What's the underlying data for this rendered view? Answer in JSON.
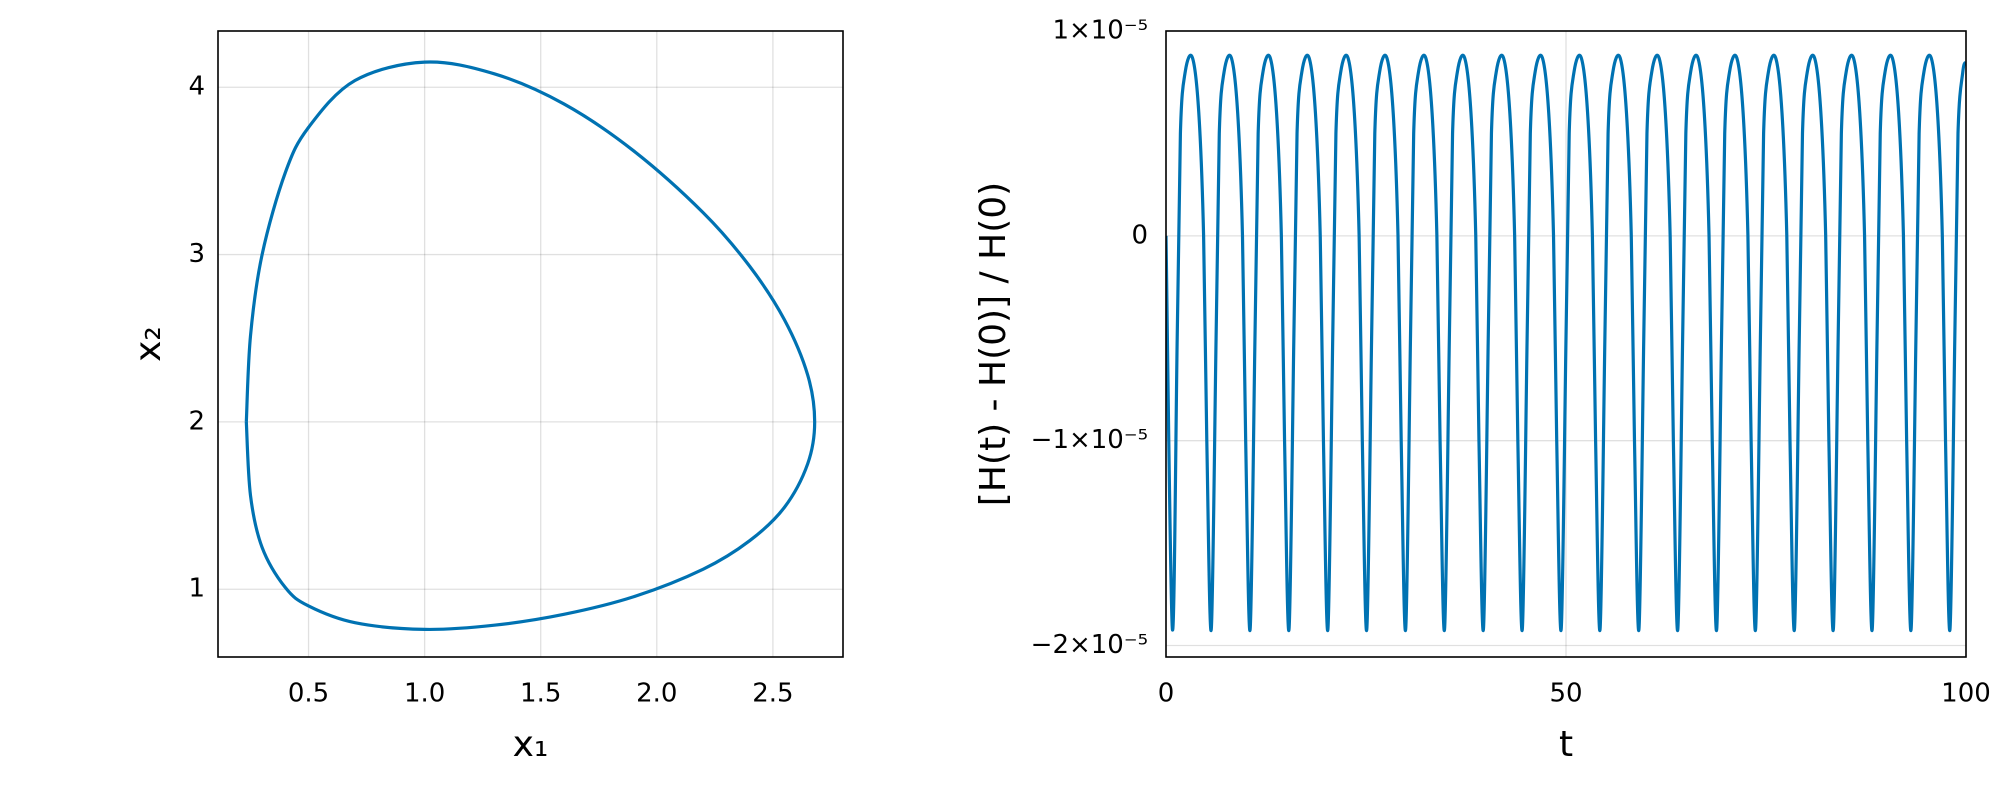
{
  "chart_data": [
    {
      "type": "line",
      "xlabel": "x₁",
      "ylabel": "x₂",
      "x": [
        0.232,
        0.25,
        0.3,
        0.4,
        0.5,
        0.7,
        1.0,
        1.3,
        1.6,
        1.9,
        2.2,
        2.4,
        2.55,
        2.65,
        2.68,
        2.65,
        2.55,
        2.4,
        2.2,
        1.9,
        1.6,
        1.3,
        1.0,
        0.7,
        0.5,
        0.4,
        0.3,
        0.25,
        0.232
      ],
      "series": [
        {
          "color": "#0072b2",
          "values": [
            2,
            2.515,
            3.0,
            3.49,
            3.76,
            4.04,
            4.15,
            4.08,
            3.9,
            3.62,
            3.25,
            2.93,
            2.61,
            2.28,
            2,
            1.75,
            1.49,
            1.29,
            1.12,
            0.955,
            0.85,
            0.785,
            0.76,
            0.8,
            0.9,
            1.01,
            1.25,
            1.56,
            2
          ]
        }
      ],
      "xlim": [
        0.11,
        2.802
      ],
      "ylim": [
        0.595,
        4.336
      ],
      "xticks": [
        0.5,
        {
          "value": 1,
          "label": "1.0"
        },
        1.5,
        {
          "value": 2,
          "label": "2.0"
        },
        2.5
      ],
      "yticks": [
        1,
        2,
        3,
        4
      ],
      "grid": true
    },
    {
      "type": "line",
      "xlabel": "t",
      "ylabel": "[H(t) - H(0)] / H(0)",
      "x": [
        0,
        0.8,
        1.4,
        1.8,
        2.4,
        3.3,
        4.1,
        4.7,
        5.1,
        5.66,
        6.26,
        6.66,
        7.26,
        8.16,
        8.96,
        9.56,
        9.96,
        10.52,
        11.12,
        11.52,
        12.12,
        13.02,
        13.82,
        14.42,
        14.82,
        15.38,
        15.98,
        16.38,
        16.98,
        17.88,
        18.68,
        19.28,
        19.68,
        20.24,
        20.84,
        21.24,
        21.84,
        22.74,
        23.54,
        24.14,
        24.54,
        25.1,
        25.7,
        26.1,
        26.7,
        27.6,
        28.4,
        29.0,
        29.4,
        29.96,
        30.56,
        30.96,
        31.56,
        32.46,
        33.26,
        33.86,
        34.26,
        34.82,
        35.42,
        35.82,
        36.42,
        37.32,
        38.12,
        38.72,
        39.12,
        39.68,
        40.28,
        40.68,
        41.28,
        42.18,
        42.98,
        43.58,
        43.98,
        44.54,
        45.14,
        45.54,
        46.14,
        47.04,
        47.84,
        48.44,
        48.84,
        49.4,
        50.0,
        50.4,
        51.0,
        51.9,
        52.7,
        53.3,
        53.7,
        54.26,
        54.86,
        55.26,
        55.86,
        56.76,
        57.56,
        58.16,
        58.56,
        59.12,
        59.72,
        60.12,
        60.72,
        61.62,
        62.42,
        63.02,
        63.42,
        63.98,
        64.58,
        64.98,
        65.58,
        66.48,
        67.28,
        67.88,
        68.28,
        68.84,
        69.44,
        69.84,
        70.44,
        71.34,
        72.14,
        72.74,
        73.14,
        73.7,
        74.3,
        74.7,
        75.3,
        76.2,
        77.0,
        77.6,
        78.0,
        78.56,
        79.16,
        79.56,
        80.16,
        81.06,
        81.86,
        82.46,
        82.86,
        83.42,
        84.02,
        84.42,
        85.02,
        85.92,
        86.72,
        87.32,
        87.72,
        88.28,
        88.88,
        89.28,
        89.88,
        90.78,
        91.58,
        92.18,
        92.58,
        93.14,
        93.74,
        94.14,
        94.74,
        95.64,
        96.44,
        97.04,
        97.44,
        98.0,
        98.6,
        99.0,
        99.6,
        100
      ],
      "series": [
        {
          "color": "#0072b2",
          "values": [
            0,
            -1.92e-05,
            -5e-06,
            5e-06,
            8e-06,
            8.7e-06,
            6e-06,
            0,
            -1e-05,
            -1.92e-05,
            -5e-06,
            5e-06,
            8e-06,
            8.7e-06,
            6e-06,
            0,
            -1e-05,
            -1.92e-05,
            -5e-06,
            5e-06,
            8e-06,
            8.7e-06,
            6e-06,
            0,
            -1e-05,
            -1.92e-05,
            -5e-06,
            5e-06,
            8e-06,
            8.7e-06,
            6e-06,
            0,
            -1e-05,
            -1.92e-05,
            -5e-06,
            5e-06,
            8e-06,
            8.7e-06,
            6e-06,
            0,
            -1e-05,
            -1.92e-05,
            -5e-06,
            5e-06,
            8e-06,
            8.7e-06,
            6e-06,
            0,
            -1e-05,
            -1.92e-05,
            -5e-06,
            5e-06,
            8e-06,
            8.7e-06,
            6e-06,
            0,
            -1e-05,
            -1.92e-05,
            -5e-06,
            5e-06,
            8e-06,
            8.7e-06,
            6e-06,
            0,
            -1e-05,
            -1.92e-05,
            -5e-06,
            5e-06,
            8e-06,
            8.7e-06,
            6e-06,
            0,
            -1e-05,
            -1.92e-05,
            -5e-06,
            5e-06,
            8e-06,
            8.7e-06,
            6e-06,
            0,
            -1e-05,
            -1.92e-05,
            -5e-06,
            5e-06,
            8e-06,
            8.7e-06,
            6e-06,
            0,
            -1e-05,
            -1.92e-05,
            -5e-06,
            5e-06,
            8e-06,
            8.7e-06,
            6e-06,
            0,
            -1e-05,
            -1.92e-05,
            -5e-06,
            5e-06,
            8e-06,
            8.7e-06,
            6e-06,
            0,
            -1e-05,
            -1.92e-05,
            -5e-06,
            5e-06,
            8e-06,
            8.7e-06,
            6e-06,
            0,
            -1e-05,
            -1.92e-05,
            -5e-06,
            5e-06,
            8e-06,
            8.7e-06,
            6e-06,
            0,
            -1e-05,
            -1.92e-05,
            -5e-06,
            5e-06,
            8e-06,
            8.7e-06,
            6e-06,
            0,
            -1e-05,
            -1.92e-05,
            -5e-06,
            5e-06,
            8e-06,
            8.7e-06,
            6e-06,
            0,
            -1e-05,
            -1.92e-05,
            -5e-06,
            5e-06,
            8e-06,
            8.7e-06,
            6e-06,
            0,
            -1e-05,
            -1.92e-05,
            -5e-06,
            5e-06,
            8e-06,
            8.7e-06,
            6e-06,
            0,
            -1e-05,
            -1.92e-05,
            -5e-06,
            5e-06,
            8e-06,
            8.7e-06,
            6e-06,
            0,
            -1e-05,
            -1.92e-05,
            -5e-06,
            5e-06,
            8e-06,
            8.5e-06
          ]
        }
      ],
      "xlim": [
        0,
        100
      ],
      "ylim": [
        -2.056e-05,
        1e-05
      ],
      "xticks": [
        0,
        50,
        100
      ],
      "yticks": [
        {
          "value": 1e-05,
          "label": "1×10⁻⁵"
        },
        0,
        {
          "value": -1e-05,
          "label": "−1×10⁻⁵"
        },
        {
          "value": -2e-05,
          "label": "−2×10⁻⁵"
        }
      ],
      "grid": true
    }
  ]
}
